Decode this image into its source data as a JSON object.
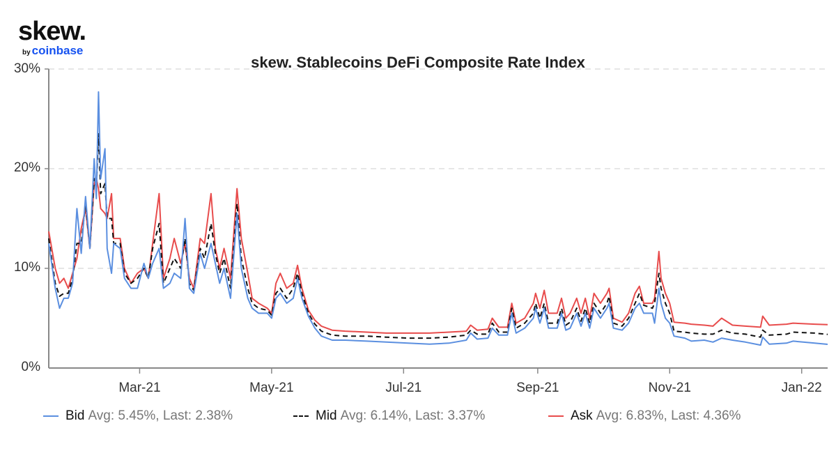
{
  "logo": {
    "brand": "skew.",
    "sub_by": "by",
    "sub_name": "coinbase"
  },
  "chart_data": {
    "type": "line",
    "title": "skew. Stablecoins DeFi Composite Rate Index",
    "ylim": [
      0,
      30
    ],
    "yticks": [
      "0%",
      "10%",
      "20%",
      "30%"
    ],
    "ytick_values": [
      0,
      10,
      20,
      30
    ],
    "xlim": [
      "2021-01-18",
      "2022-01-13"
    ],
    "xticks": [
      "Mar-21",
      "May-21",
      "Jul-21",
      "Sep-21",
      "Nov-21",
      "Jan-22"
    ],
    "xtick_dates": [
      "2021-03-01",
      "2021-05-01",
      "2021-07-01",
      "2021-09-01",
      "2021-11-01",
      "2022-01-01"
    ],
    "grid": "horizontal dashed",
    "legend_position": "bottom",
    "colors": {
      "bid": "#5b8fe0",
      "mid": "#111111",
      "ask": "#e84c4c",
      "grid": "#dddddd",
      "axis": "#888888"
    },
    "x": [
      "2021-01-18",
      "2021-01-21",
      "2021-01-23",
      "2021-01-25",
      "2021-01-27",
      "2021-01-29",
      "2021-01-31",
      "2021-02-02",
      "2021-02-04",
      "2021-02-06",
      "2021-02-08",
      "2021-02-09",
      "2021-02-10",
      "2021-02-11",
      "2021-02-13",
      "2021-02-14",
      "2021-02-16",
      "2021-02-17",
      "2021-02-20",
      "2021-02-22",
      "2021-02-25",
      "2021-02-28",
      "2021-03-03",
      "2021-03-05",
      "2021-03-07",
      "2021-03-10",
      "2021-03-12",
      "2021-03-15",
      "2021-03-17",
      "2021-03-20",
      "2021-03-22",
      "2021-03-24",
      "2021-03-26",
      "2021-03-29",
      "2021-03-31",
      "2021-04-03",
      "2021-04-05",
      "2021-04-07",
      "2021-04-09",
      "2021-04-12",
      "2021-04-15",
      "2021-04-17",
      "2021-04-20",
      "2021-04-22",
      "2021-04-25",
      "2021-04-29",
      "2021-05-01",
      "2021-05-03",
      "2021-05-05",
      "2021-05-08",
      "2021-05-11",
      "2021-05-13",
      "2021-05-15",
      "2021-05-18",
      "2021-05-21",
      "2021-05-24",
      "2021-05-29",
      "2021-06-04",
      "2021-06-14",
      "2021-06-23",
      "2021-07-03",
      "2021-07-13",
      "2021-07-22",
      "2021-07-30",
      "2021-08-01",
      "2021-08-04",
      "2021-08-09",
      "2021-08-11",
      "2021-08-14",
      "2021-08-18",
      "2021-08-20",
      "2021-08-22",
      "2021-08-26",
      "2021-08-30",
      "2021-08-31",
      "2021-09-02",
      "2021-09-04",
      "2021-09-06",
      "2021-09-10",
      "2021-09-12",
      "2021-09-14",
      "2021-09-16",
      "2021-09-19",
      "2021-09-21",
      "2021-09-23",
      "2021-09-25",
      "2021-09-27",
      "2021-09-30",
      "2021-10-03",
      "2021-10-04",
      "2021-10-06",
      "2021-10-10",
      "2021-10-13",
      "2021-10-16",
      "2021-10-18",
      "2021-10-20",
      "2021-10-24",
      "2021-10-25",
      "2021-10-27",
      "2021-10-28",
      "2021-10-30",
      "2021-11-01",
      "2021-11-03",
      "2021-11-08",
      "2021-11-11",
      "2021-11-17",
      "2021-11-21",
      "2021-11-25",
      "2021-11-30",
      "2021-12-06",
      "2021-12-13",
      "2021-12-14",
      "2021-12-17",
      "2021-12-25",
      "2021-12-28",
      "2022-01-07",
      "2022-01-13"
    ],
    "series": [
      {
        "name": "Bid",
        "avg": "Avg: 5.45%, Last: 2.38%",
        "style": "solid",
        "values": [
          12.5,
          8,
          6,
          7,
          7,
          8.5,
          16,
          11.5,
          17.2,
          12,
          21,
          17,
          27.7,
          19,
          22,
          12,
          9.5,
          12.5,
          12,
          9,
          8,
          8,
          10.5,
          9,
          10.5,
          12,
          8,
          8.5,
          9.5,
          9,
          15,
          8,
          7.5,
          11.5,
          10,
          12.5,
          10.5,
          8.5,
          10,
          7,
          15.5,
          10,
          7,
          6,
          5.5,
          5.5,
          5,
          7,
          7.5,
          6.5,
          7,
          9,
          7,
          5.2,
          4,
          3.2,
          2.8,
          2.8,
          2.7,
          2.6,
          2.5,
          2.4,
          2.5,
          2.8,
          3.5,
          2.9,
          3,
          4,
          3.3,
          3.3,
          5.5,
          3.5,
          4,
          5,
          6,
          4.5,
          6,
          4,
          4,
          5.5,
          3.8,
          4,
          5.5,
          4.2,
          5.5,
          4,
          6,
          5,
          6,
          6.5,
          4,
          3.8,
          4.5,
          6,
          6.5,
          5.5,
          5.5,
          4.5,
          8,
          6.5,
          5,
          4.5,
          3.2,
          3,
          2.7,
          2.8,
          2.6,
          3,
          2.8,
          2.6,
          2.3,
          3.1,
          2.4,
          2.5,
          2.7,
          2.5,
          2.38
        ]
      },
      {
        "name": "Mid",
        "avg": "Avg: 6.14%, Last: 3.37%",
        "style": "dashed",
        "values": [
          13,
          8.5,
          7.2,
          7.5,
          7.5,
          9,
          12.5,
          12.5,
          16.5,
          12,
          19,
          18,
          23.5,
          17.5,
          18.5,
          15,
          15,
          12.5,
          12.5,
          9.5,
          8.5,
          9,
          10,
          9,
          12,
          14.5,
          8.5,
          10,
          11,
          10,
          13,
          8.5,
          7.8,
          12,
          11,
          14.5,
          11.5,
          9.5,
          11,
          8,
          16.5,
          11,
          8,
          6.5,
          6,
          5.8,
          5.3,
          7.5,
          8,
          7,
          8,
          9.5,
          7.5,
          5.5,
          4.4,
          3.7,
          3.3,
          3.2,
          3.2,
          3.1,
          3,
          3,
          3.1,
          3.3,
          3.8,
          3.4,
          3.4,
          4.5,
          3.6,
          3.6,
          6,
          4,
          4.5,
          5.5,
          6.5,
          5,
          6.5,
          4.5,
          4.5,
          6,
          4.3,
          4.6,
          6,
          4.7,
          6,
          4.5,
          6.5,
          5.5,
          6.5,
          7.2,
          4.5,
          4.2,
          5,
          6.5,
          7.5,
          6.3,
          6,
          6.5,
          9.5,
          8,
          6.5,
          5.5,
          3.7,
          3.6,
          3.5,
          3.4,
          3.4,
          3.8,
          3.5,
          3.4,
          3.1,
          3.8,
          3.3,
          3.4,
          3.6,
          3.5,
          3.37
        ]
      },
      {
        "name": "Ask",
        "avg": "Avg: 6.83%, Last: 4.36%",
        "style": "solid",
        "values": [
          13.7,
          10,
          8.5,
          9,
          8,
          9.5,
          11,
          14,
          16,
          12,
          18.5,
          19,
          18,
          16,
          15.5,
          15,
          17.5,
          13,
          13,
          10,
          8.5,
          9.5,
          10,
          9,
          12.5,
          17.5,
          9,
          11,
          13,
          10.5,
          12.5,
          9,
          8,
          13,
          12.5,
          17.5,
          12,
          10,
          12,
          9,
          18,
          13,
          9.5,
          7,
          6.5,
          6,
          5.5,
          8.5,
          9.5,
          8,
          8.5,
          10.3,
          8,
          5.8,
          4.8,
          4.2,
          3.8,
          3.7,
          3.6,
          3.5,
          3.5,
          3.5,
          3.6,
          3.7,
          4.3,
          3.8,
          3.9,
          5,
          4.1,
          4.1,
          6.5,
          4.5,
          5,
          6.5,
          7.5,
          6,
          7.8,
          5.5,
          5.5,
          7,
          5,
          5.5,
          7,
          5.5,
          7,
          5,
          7.5,
          6.5,
          7.5,
          8,
          5,
          4.6,
          5.5,
          7.5,
          8.2,
          6.5,
          6.5,
          7,
          11.7,
          9,
          7.5,
          6.5,
          4.6,
          4.5,
          4.4,
          4.3,
          4.2,
          5,
          4.3,
          4.2,
          4.1,
          5.2,
          4.3,
          4.4,
          4.5,
          4.4,
          4.36
        ]
      }
    ]
  }
}
